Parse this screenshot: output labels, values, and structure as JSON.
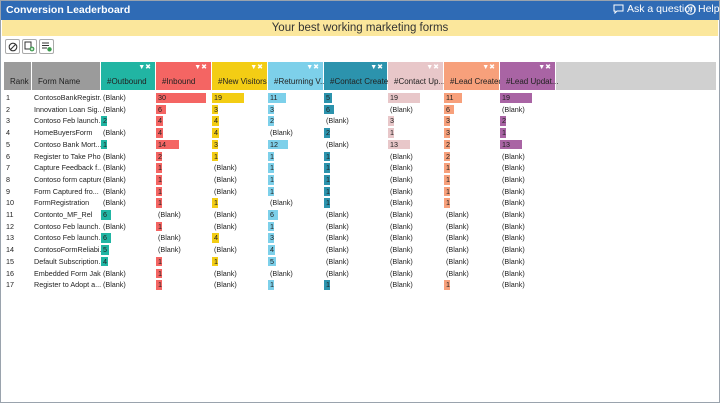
{
  "window": {
    "title": "Conversion Leaderboard",
    "ask_label": "Ask a question",
    "help_label": "Help"
  },
  "banner": "Your best working marketing forms",
  "toolbar": [
    {
      "name": "clear-filters-button",
      "icon": "no-entry-icon"
    },
    {
      "name": "add-filter-button",
      "icon": "add-filter-icon"
    },
    {
      "name": "list-filter-button",
      "icon": "list-filter-icon"
    }
  ],
  "columns": [
    {
      "key": "rank",
      "label": "Rank",
      "color": null
    },
    {
      "key": "form",
      "label": "Form Name",
      "color": null
    },
    {
      "key": "outbound",
      "label": "#Outbound",
      "color": "#21b5a3",
      "max": 30
    },
    {
      "key": "inbound",
      "label": "#Inbound",
      "color": "#f46563",
      "max": 30
    },
    {
      "key": "new_visitors",
      "label": "#New Visitors",
      "color": "#f3cd14",
      "max": 30
    },
    {
      "key": "returning",
      "label": "#Returning V...",
      "color": "#7dd0ea",
      "max": 30
    },
    {
      "key": "contact_created",
      "label": "#Contact Created",
      "color": "#2c93ad",
      "max": 30
    },
    {
      "key": "contact_up",
      "label": "#Contact Up...",
      "color": "#e8c7c9",
      "max": 30
    },
    {
      "key": "lead_created",
      "label": "#Lead Created",
      "color": "#f7a07b",
      "max": 30
    },
    {
      "key": "lead_update",
      "label": "#Lead Updat...",
      "color": "#a964a4",
      "max": 30
    }
  ],
  "rows": [
    {
      "rank": "1",
      "form": "ContosoBankRegistr...",
      "outbound": "(Blank)",
      "inbound": "30",
      "new_visitors": "19",
      "returning": "11",
      "contact_created": "5",
      "contact_up": "19",
      "lead_created": "11",
      "lead_update": "19"
    },
    {
      "rank": "2",
      "form": "Innovation Loan Sig...",
      "outbound": "(Blank)",
      "inbound": "6",
      "new_visitors": "3",
      "returning": "3",
      "contact_created": "6",
      "contact_up": "(Blank)",
      "lead_created": "6",
      "lead_update": "(Blank)"
    },
    {
      "rank": "3",
      "form": "Contoso Feb launch...",
      "outbound": "2",
      "inbound": "4",
      "new_visitors": "4",
      "returning": "2",
      "contact_created": "(Blank)",
      "contact_up": "3",
      "lead_created": "3",
      "lead_update": "2"
    },
    {
      "rank": "4",
      "form": "HomeBuyersForm",
      "outbound": "(Blank)",
      "inbound": "4",
      "new_visitors": "4",
      "returning": "(Blank)",
      "contact_created": "2",
      "contact_up": "1",
      "lead_created": "3",
      "lead_update": "1"
    },
    {
      "rank": "5",
      "form": "Contoso Bank Mort...",
      "outbound": "1",
      "inbound": "14",
      "new_visitors": "3",
      "returning": "12",
      "contact_created": "(Blank)",
      "contact_up": "13",
      "lead_created": "2",
      "lead_update": "13"
    },
    {
      "rank": "6",
      "form": "Register to Take Pho...",
      "outbound": "(Blank)",
      "inbound": "2",
      "new_visitors": "1",
      "returning": "1",
      "contact_created": "1",
      "contact_up": "(Blank)",
      "lead_created": "2",
      "lead_update": "(Blank)"
    },
    {
      "rank": "7",
      "form": "Capture Feedback f...",
      "outbound": "(Blank)",
      "inbound": "1",
      "new_visitors": "(Blank)",
      "returning": "1",
      "contact_created": "1",
      "contact_up": "(Blank)",
      "lead_created": "1",
      "lead_update": "(Blank)"
    },
    {
      "rank": "8",
      "form": "Contoso form capture",
      "outbound": "(Blank)",
      "inbound": "1",
      "new_visitors": "(Blank)",
      "returning": "1",
      "contact_created": "1",
      "contact_up": "(Blank)",
      "lead_created": "1",
      "lead_update": "(Blank)"
    },
    {
      "rank": "9",
      "form": "Form Captured fro...",
      "outbound": "(Blank)",
      "inbound": "1",
      "new_visitors": "(Blank)",
      "returning": "1",
      "contact_created": "1",
      "contact_up": "(Blank)",
      "lead_created": "1",
      "lead_update": "(Blank)"
    },
    {
      "rank": "10",
      "form": "FormRegistration",
      "outbound": "(Blank)",
      "inbound": "1",
      "new_visitors": "1",
      "returning": "(Blank)",
      "contact_created": "1",
      "contact_up": "(Blank)",
      "lead_created": "1",
      "lead_update": "(Blank)"
    },
    {
      "rank": "11",
      "form": "Contonto_MF_Rel",
      "outbound": "6",
      "inbound": "(Blank)",
      "new_visitors": "(Blank)",
      "returning": "6",
      "contact_created": "(Blank)",
      "contact_up": "(Blank)",
      "lead_created": "(Blank)",
      "lead_update": "(Blank)"
    },
    {
      "rank": "12",
      "form": "Contoso Feb launch...",
      "outbound": "(Blank)",
      "inbound": "1",
      "new_visitors": "(Blank)",
      "returning": "1",
      "contact_created": "(Blank)",
      "contact_up": "(Blank)",
      "lead_created": "(Blank)",
      "lead_update": "(Blank)"
    },
    {
      "rank": "13",
      "form": "Contoso Feb launch...",
      "outbound": "6",
      "inbound": "(Blank)",
      "new_visitors": "4",
      "returning": "3",
      "contact_created": "(Blank)",
      "contact_up": "(Blank)",
      "lead_created": "(Blank)",
      "lead_update": "(Blank)"
    },
    {
      "rank": "14",
      "form": "ContosoFormReliabi...",
      "outbound": "5",
      "inbound": "(Blank)",
      "new_visitors": "(Blank)",
      "returning": "4",
      "contact_created": "(Blank)",
      "contact_up": "(Blank)",
      "lead_created": "(Blank)",
      "lead_update": "(Blank)"
    },
    {
      "rank": "15",
      "form": "Default Subscription...",
      "outbound": "4",
      "inbound": "1",
      "new_visitors": "1",
      "returning": "5",
      "contact_created": "(Blank)",
      "contact_up": "(Blank)",
      "lead_created": "(Blank)",
      "lead_update": "(Blank)"
    },
    {
      "rank": "16",
      "form": "Embedded Form Jak...",
      "outbound": "(Blank)",
      "inbound": "1",
      "new_visitors": "(Blank)",
      "returning": "(Blank)",
      "contact_created": "(Blank)",
      "contact_up": "(Blank)",
      "lead_created": "(Blank)",
      "lead_update": "(Blank)"
    },
    {
      "rank": "17",
      "form": "Register to Adopt a...",
      "outbound": "(Blank)",
      "inbound": "1",
      "new_visitors": "(Blank)",
      "returning": "1",
      "contact_created": "1",
      "contact_up": "(Blank)",
      "lead_created": "1",
      "lead_update": "(Blank)"
    }
  ]
}
